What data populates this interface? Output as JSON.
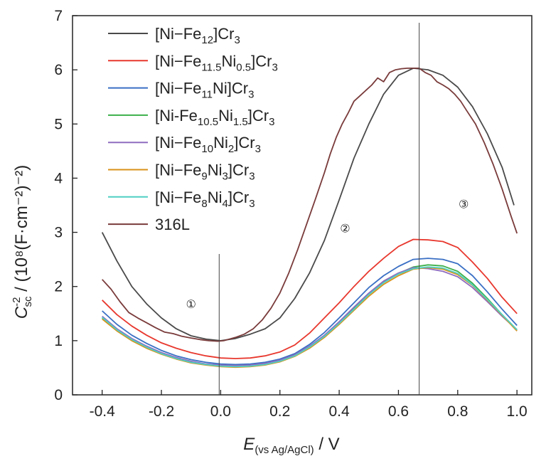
{
  "chart_data": {
    "type": "line",
    "xlabel": {
      "main": "E",
      "sub": "(vs Ag/AgCl)",
      "unit": " / V"
    },
    "ylabel": {
      "main": "C",
      "sup": "-2",
      "sub": "sc",
      "unit": " / (10⁸(F·cm⁻²)⁻²)"
    },
    "xlim": [
      -0.5,
      1.05
    ],
    "ylim": [
      0,
      7
    ],
    "xticks": [
      -0.4,
      -0.2,
      0.0,
      0.2,
      0.4,
      0.6,
      0.8,
      1.0
    ],
    "xtick_labels": [
      "-0.4",
      "-0.2",
      "0.0",
      "0.2",
      "0.4",
      "0.6",
      "0.8",
      "1.0"
    ],
    "yticks": [
      0,
      1,
      2,
      3,
      4,
      5,
      6,
      7
    ],
    "ytick_labels": [
      "0",
      "1",
      "2",
      "3",
      "4",
      "5",
      "6",
      "7"
    ],
    "grid": false,
    "legend_position": "top-left",
    "vlines": [
      -0.005,
      0.67
    ],
    "regions": [
      {
        "label": "①",
        "x": -0.1,
        "y": 1.6
      },
      {
        "label": "②",
        "x": 0.42,
        "y": 3.0
      },
      {
        "label": "③",
        "x": 0.82,
        "y": 3.45
      }
    ],
    "series": [
      {
        "name": "[Ni−Fe12]Cr3",
        "legend": [
          [
            "[Ni−Fe",
            ""
          ],
          [
            "12",
            "sub"
          ],
          [
            "]Cr",
            ""
          ],
          [
            "3",
            "sub"
          ]
        ],
        "color": "#4a4a4a",
        "x": [
          -0.4,
          -0.35,
          -0.3,
          -0.25,
          -0.2,
          -0.15,
          -0.1,
          -0.05,
          0.0,
          0.05,
          0.1,
          0.15,
          0.2,
          0.25,
          0.3,
          0.35,
          0.4,
          0.45,
          0.5,
          0.55,
          0.6,
          0.65,
          0.7,
          0.75,
          0.8,
          0.85,
          0.9,
          0.95,
          0.99
        ],
        "y": [
          3.0,
          2.47,
          2.0,
          1.68,
          1.42,
          1.22,
          1.09,
          1.03,
          1.0,
          1.04,
          1.12,
          1.22,
          1.42,
          1.78,
          2.25,
          2.85,
          3.6,
          4.37,
          5.0,
          5.55,
          5.9,
          6.03,
          6.0,
          5.9,
          5.68,
          5.32,
          4.82,
          4.2,
          3.5
        ]
      },
      {
        "name": "[Ni−Fe11.5Ni0.5]Cr3",
        "legend": [
          [
            "[Ni−Fe",
            ""
          ],
          [
            "11.5",
            "sub"
          ],
          [
            "Ni",
            ""
          ],
          [
            "0.5",
            "sub"
          ],
          [
            "]Cr",
            ""
          ],
          [
            "3",
            "sub"
          ]
        ],
        "color": "#e8382e",
        "x": [
          -0.4,
          -0.35,
          -0.3,
          -0.25,
          -0.2,
          -0.15,
          -0.1,
          -0.05,
          0.0,
          0.05,
          0.1,
          0.15,
          0.2,
          0.25,
          0.3,
          0.35,
          0.4,
          0.45,
          0.5,
          0.55,
          0.6,
          0.65,
          0.7,
          0.75,
          0.8,
          0.85,
          0.9,
          0.95,
          1.0
        ],
        "y": [
          1.75,
          1.48,
          1.27,
          1.1,
          0.96,
          0.86,
          0.78,
          0.72,
          0.68,
          0.67,
          0.68,
          0.72,
          0.79,
          0.92,
          1.14,
          1.42,
          1.7,
          2.0,
          2.28,
          2.52,
          2.74,
          2.87,
          2.86,
          2.83,
          2.72,
          2.45,
          2.15,
          1.8,
          1.5
        ]
      },
      {
        "name": "[Ni−Fe11Ni]Cr3",
        "legend": [
          [
            "[Ni−Fe",
            ""
          ],
          [
            "11",
            "sub"
          ],
          [
            "Ni]Cr",
            ""
          ],
          [
            "3",
            "sub"
          ]
        ],
        "color": "#3a6fc4",
        "x": [
          -0.4,
          -0.35,
          -0.3,
          -0.25,
          -0.2,
          -0.15,
          -0.1,
          -0.05,
          0.0,
          0.05,
          0.1,
          0.15,
          0.2,
          0.25,
          0.3,
          0.35,
          0.4,
          0.45,
          0.5,
          0.55,
          0.6,
          0.65,
          0.7,
          0.75,
          0.8,
          0.85,
          0.9,
          0.95,
          1.0
        ],
        "y": [
          1.55,
          1.3,
          1.1,
          0.95,
          0.82,
          0.72,
          0.65,
          0.6,
          0.57,
          0.56,
          0.57,
          0.6,
          0.66,
          0.76,
          0.93,
          1.15,
          1.42,
          1.7,
          1.98,
          2.2,
          2.37,
          2.5,
          2.52,
          2.5,
          2.42,
          2.2,
          1.9,
          1.58,
          1.28
        ]
      },
      {
        "name": "[Ni-Fe10.5Ni1.5]Cr3",
        "legend": [
          [
            "[Ni-Fe",
            ""
          ],
          [
            "10.5",
            "sub"
          ],
          [
            "Ni",
            ""
          ],
          [
            "1.5",
            "sub"
          ],
          [
            "]Cr",
            ""
          ],
          [
            "3",
            "sub"
          ]
        ],
        "color": "#3cb04a",
        "x": [
          -0.4,
          -0.35,
          -0.3,
          -0.25,
          -0.2,
          -0.15,
          -0.1,
          -0.05,
          0.0,
          0.05,
          0.1,
          0.15,
          0.2,
          0.25,
          0.3,
          0.35,
          0.4,
          0.45,
          0.5,
          0.55,
          0.6,
          0.65,
          0.7,
          0.75,
          0.8,
          0.85,
          0.9,
          0.95,
          1.0
        ],
        "y": [
          1.42,
          1.2,
          1.02,
          0.88,
          0.76,
          0.67,
          0.6,
          0.56,
          0.53,
          0.52,
          0.53,
          0.56,
          0.62,
          0.72,
          0.88,
          1.08,
          1.33,
          1.6,
          1.86,
          2.08,
          2.24,
          2.36,
          2.4,
          2.38,
          2.28,
          2.06,
          1.78,
          1.48,
          1.2
        ]
      },
      {
        "name": "[Ni−Fe10Ni2]Cr3",
        "legend": [
          [
            "[Ni−Fe",
            ""
          ],
          [
            "10",
            "sub"
          ],
          [
            "Ni",
            ""
          ],
          [
            "2",
            "sub"
          ],
          [
            "]Cr",
            ""
          ],
          [
            "3",
            "sub"
          ]
        ],
        "color": "#8e6cc0",
        "x": [
          -0.4,
          -0.35,
          -0.3,
          -0.25,
          -0.2,
          -0.15,
          -0.1,
          -0.05,
          0.0,
          0.05,
          0.1,
          0.15,
          0.2,
          0.25,
          0.3,
          0.35,
          0.4,
          0.45,
          0.5,
          0.55,
          0.6,
          0.65,
          0.7,
          0.75,
          0.8,
          0.85,
          0.9,
          0.95,
          1.0
        ],
        "y": [
          1.45,
          1.22,
          1.04,
          0.9,
          0.78,
          0.69,
          0.62,
          0.57,
          0.55,
          0.54,
          0.55,
          0.58,
          0.64,
          0.74,
          0.9,
          1.1,
          1.35,
          1.62,
          1.88,
          2.1,
          2.25,
          2.35,
          2.33,
          2.28,
          2.18,
          1.98,
          1.72,
          1.45,
          1.2
        ]
      },
      {
        "name": "[Ni−Fe9Ni3]Cr3",
        "legend": [
          [
            "[Ni−Fe",
            ""
          ],
          [
            "9",
            "sub"
          ],
          [
            "Ni",
            ""
          ],
          [
            "3",
            "sub"
          ],
          [
            "]Cr",
            ""
          ],
          [
            "3",
            "sub"
          ]
        ],
        "color": "#d9921a",
        "x": [
          -0.4,
          -0.35,
          -0.3,
          -0.25,
          -0.2,
          -0.15,
          -0.1,
          -0.05,
          0.0,
          0.05,
          0.1,
          0.15,
          0.2,
          0.25,
          0.3,
          0.35,
          0.4,
          0.45,
          0.5,
          0.55,
          0.6,
          0.65,
          0.7,
          0.75,
          0.8,
          0.85,
          0.9,
          0.95,
          1.0
        ],
        "y": [
          1.4,
          1.18,
          1.0,
          0.86,
          0.75,
          0.66,
          0.59,
          0.55,
          0.52,
          0.51,
          0.52,
          0.55,
          0.61,
          0.71,
          0.86,
          1.06,
          1.3,
          1.56,
          1.82,
          2.04,
          2.2,
          2.32,
          2.35,
          2.32,
          2.22,
          2.02,
          1.75,
          1.47,
          1.18
        ]
      },
      {
        "name": "[Ni−Fe8Ni4]Cr3",
        "legend": [
          [
            "[Ni−Fe",
            ""
          ],
          [
            "8",
            "sub"
          ],
          [
            "Ni",
            ""
          ],
          [
            "4",
            "sub"
          ],
          [
            "]Cr",
            ""
          ],
          [
            "3",
            "sub"
          ]
        ],
        "color": "#4fcfc4",
        "x": [
          -0.4,
          -0.35,
          -0.3,
          -0.25,
          -0.2,
          -0.15,
          -0.1,
          -0.05,
          0.0,
          0.05,
          0.1,
          0.15,
          0.2,
          0.25,
          0.3,
          0.35,
          0.4,
          0.45,
          0.5,
          0.55,
          0.6,
          0.65,
          0.7,
          0.75,
          0.8,
          0.85,
          0.9,
          0.95,
          1.0
        ],
        "y": [
          1.43,
          1.2,
          1.02,
          0.88,
          0.76,
          0.67,
          0.6,
          0.56,
          0.53,
          0.52,
          0.53,
          0.56,
          0.62,
          0.72,
          0.88,
          1.08,
          1.32,
          1.58,
          1.85,
          2.07,
          2.23,
          2.33,
          2.36,
          2.34,
          2.24,
          2.03,
          1.76,
          1.48,
          1.2
        ]
      },
      {
        "name": "316L",
        "legend": [
          [
            "316L",
            ""
          ]
        ],
        "color": "#7a3b3b",
        "x": [
          -0.4,
          -0.37,
          -0.34,
          -0.31,
          -0.28,
          -0.25,
          -0.22,
          -0.19,
          -0.16,
          -0.13,
          -0.1,
          -0.07,
          -0.04,
          -0.01,
          0.01,
          0.03,
          0.05,
          0.08,
          0.11,
          0.14,
          0.17,
          0.2,
          0.23,
          0.26,
          0.29,
          0.32,
          0.35,
          0.37,
          0.39,
          0.41,
          0.43,
          0.45,
          0.47,
          0.49,
          0.51,
          0.53,
          0.55,
          0.57,
          0.59,
          0.61,
          0.63,
          0.65,
          0.67,
          0.69,
          0.71,
          0.73,
          0.75,
          0.77,
          0.79,
          0.81,
          0.83,
          0.86,
          0.89,
          0.92,
          0.95,
          0.98,
          1.0
        ],
        "y": [
          2.13,
          1.95,
          1.72,
          1.52,
          1.42,
          1.33,
          1.24,
          1.16,
          1.13,
          1.08,
          1.05,
          1.02,
          1.0,
          0.99,
          1.0,
          1.03,
          1.06,
          1.12,
          1.22,
          1.38,
          1.6,
          1.88,
          2.25,
          2.68,
          3.15,
          3.62,
          4.1,
          4.45,
          4.75,
          5.0,
          5.2,
          5.42,
          5.52,
          5.62,
          5.72,
          5.85,
          5.78,
          5.95,
          6.0,
          6.02,
          6.03,
          6.03,
          6.03,
          5.95,
          5.9,
          5.78,
          5.72,
          5.65,
          5.55,
          5.42,
          5.25,
          5.0,
          4.65,
          4.25,
          3.8,
          3.3,
          2.98
        ]
      }
    ]
  }
}
